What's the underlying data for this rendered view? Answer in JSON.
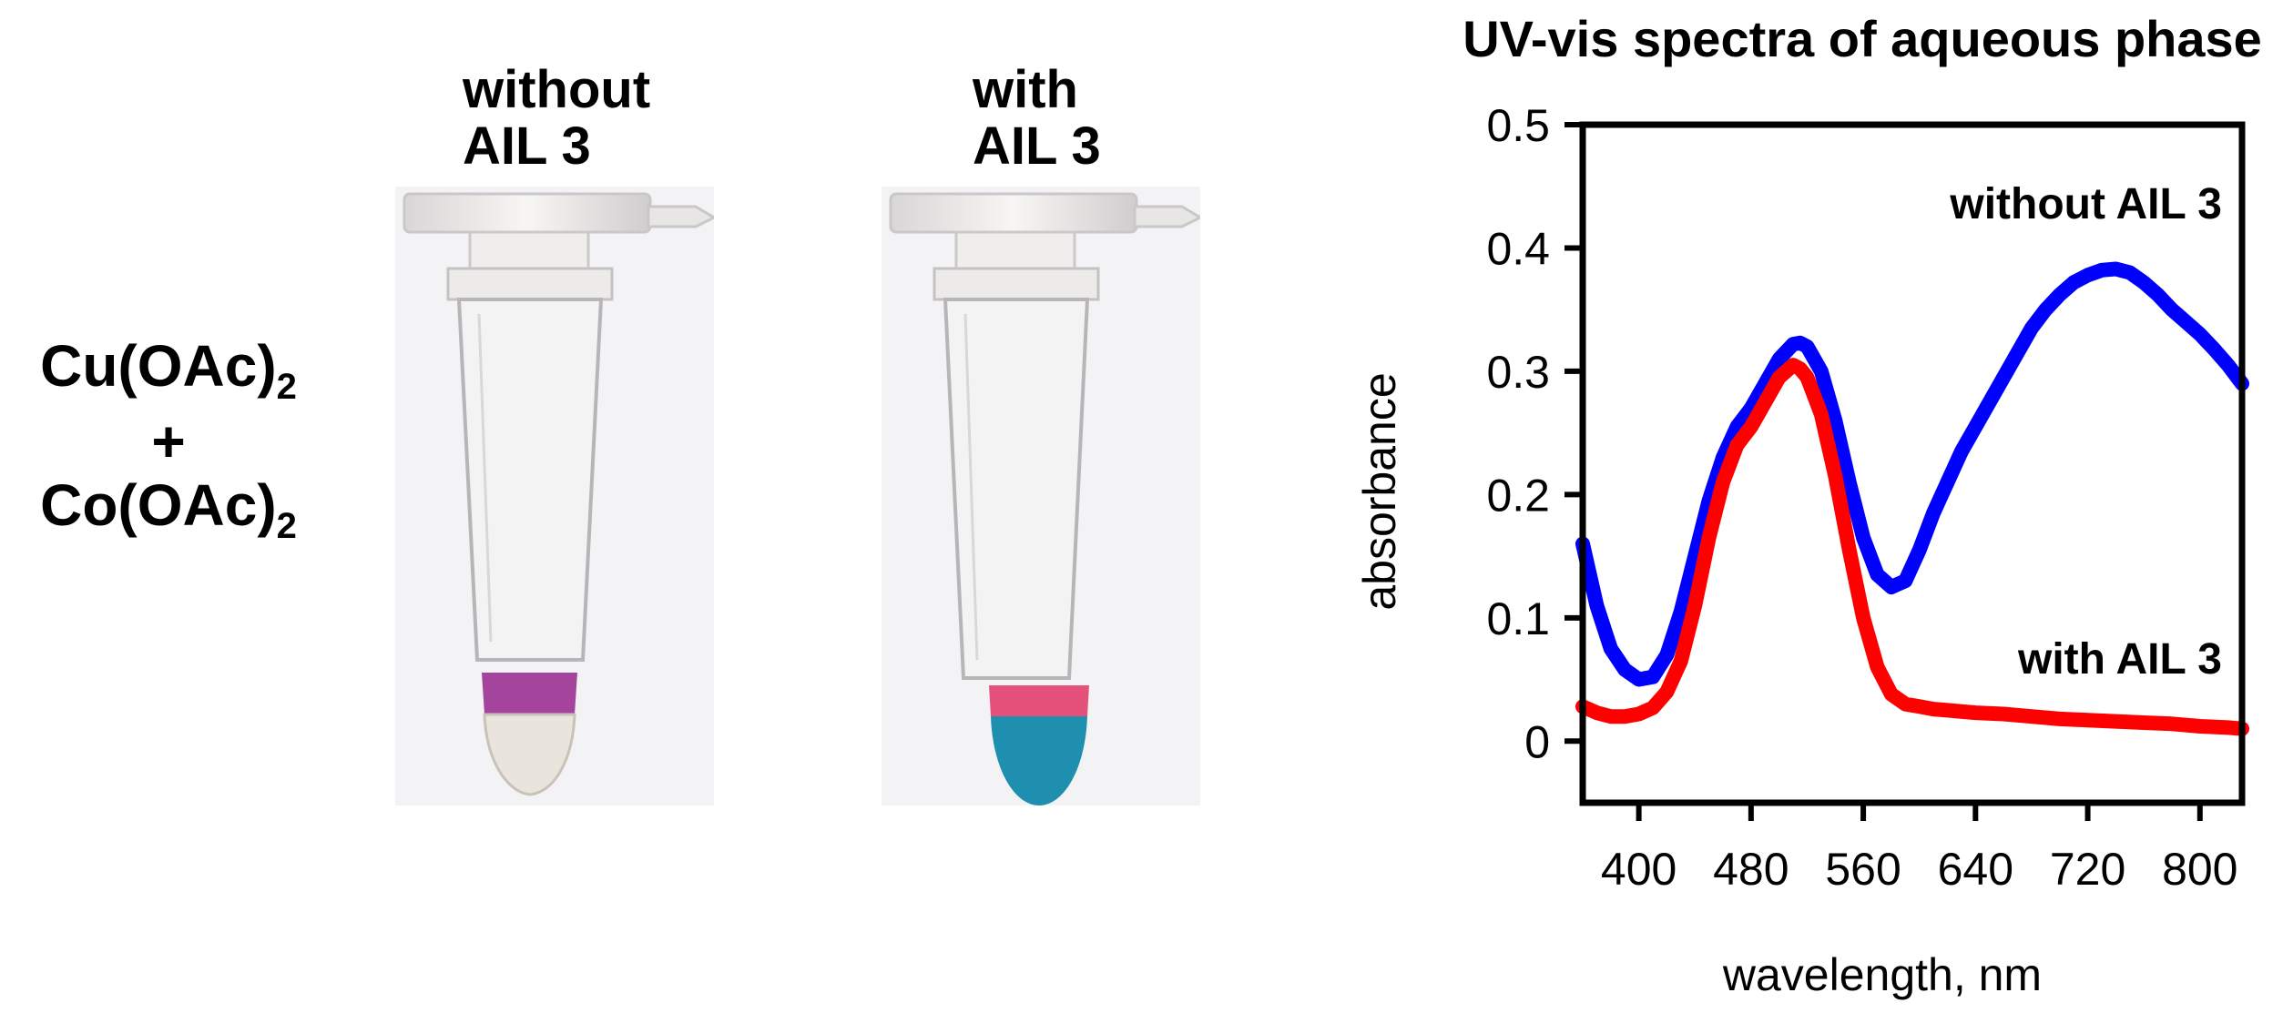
{
  "reagents": {
    "line1_base": "Cu(OAc)",
    "line1_sub": "2",
    "plus": "+",
    "line2_base": "Co(OAc)",
    "line2_sub": "2"
  },
  "samples": [
    {
      "line1": "without",
      "line2": "AIL 3",
      "upper_color": "#a4449c",
      "lower_color": "#e9e4dc"
    },
    {
      "line1": "with",
      "line2": "AIL 3",
      "upper_color": "#e4527c",
      "lower_color": "#1e8fae"
    }
  ],
  "chart_data": {
    "type": "line",
    "title": "UV-vis spectra of aqueous phase",
    "xlabel": "wavelength, nm",
    "ylabel": "absorbance",
    "xlim": [
      360,
      830
    ],
    "ylim": [
      -0.05,
      0.5
    ],
    "xticks": [
      400,
      480,
      560,
      640,
      720,
      800
    ],
    "yticks": [
      0,
      0.1,
      0.2,
      0.3,
      0.4,
      0.5
    ],
    "ytick_labels": [
      "0",
      "0.1",
      "0.2",
      "0.3",
      "0.4",
      "0.5"
    ],
    "grid": false,
    "series": [
      {
        "name": "without AIL 3",
        "color": "#0000ff",
        "x": [
          360,
          370,
          380,
          390,
          400,
          410,
          420,
          430,
          440,
          450,
          460,
          470,
          480,
          490,
          500,
          510,
          515,
          520,
          530,
          540,
          550,
          560,
          570,
          580,
          590,
          600,
          610,
          620,
          630,
          640,
          650,
          660,
          670,
          680,
          690,
          700,
          710,
          720,
          730,
          740,
          750,
          760,
          770,
          780,
          790,
          800,
          810,
          820,
          830
        ],
        "y": [
          0.16,
          0.11,
          0.075,
          0.058,
          0.05,
          0.052,
          0.07,
          0.105,
          0.15,
          0.195,
          0.23,
          0.255,
          0.27,
          0.29,
          0.31,
          0.322,
          0.323,
          0.32,
          0.3,
          0.26,
          0.21,
          0.165,
          0.135,
          0.125,
          0.13,
          0.155,
          0.185,
          0.21,
          0.235,
          0.255,
          0.275,
          0.295,
          0.315,
          0.335,
          0.35,
          0.362,
          0.372,
          0.378,
          0.382,
          0.383,
          0.38,
          0.372,
          0.362,
          0.35,
          0.34,
          0.33,
          0.318,
          0.305,
          0.29
        ]
      },
      {
        "name": "with AIL 3",
        "color": "#ff0000",
        "x": [
          360,
          370,
          380,
          390,
          400,
          410,
          420,
          430,
          440,
          450,
          460,
          470,
          480,
          490,
          500,
          510,
          515,
          520,
          530,
          540,
          550,
          560,
          570,
          580,
          590,
          600,
          610,
          620,
          640,
          660,
          680,
          700,
          720,
          740,
          760,
          780,
          800,
          820,
          830
        ],
        "y": [
          0.028,
          0.023,
          0.02,
          0.02,
          0.022,
          0.027,
          0.04,
          0.065,
          0.11,
          0.165,
          0.21,
          0.24,
          0.255,
          0.275,
          0.295,
          0.305,
          0.302,
          0.295,
          0.265,
          0.215,
          0.155,
          0.1,
          0.06,
          0.038,
          0.03,
          0.028,
          0.026,
          0.025,
          0.023,
          0.022,
          0.02,
          0.018,
          0.017,
          0.016,
          0.015,
          0.014,
          0.012,
          0.011,
          0.01
        ]
      }
    ]
  }
}
